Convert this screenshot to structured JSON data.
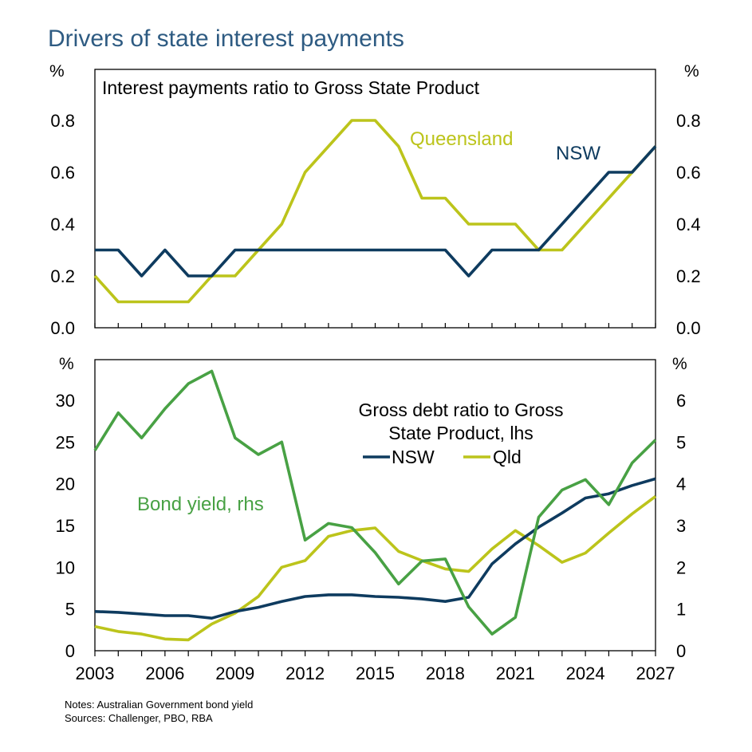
{
  "title": "Drivers of state interest payments",
  "notes": "Notes: Australian Government bond yield",
  "sources": "Sources: Challenger, PBO, RBA",
  "colors": {
    "nsw": "#0e3b5f",
    "qld": "#bcc41b",
    "bond": "#48a144"
  },
  "chart_data": [
    {
      "type": "line",
      "title": "Interest payments ratio to Gross State Product",
      "ylabel_left": "%",
      "ylabel_right": "%",
      "ylim": [
        0,
        0.8
      ],
      "yticks": [
        "0.0",
        "0.2",
        "0.4",
        "0.6",
        "0.8"
      ],
      "xlim": [
        2003,
        2027
      ],
      "series": [
        {
          "name": "NSW",
          "x": [
            2003,
            2004,
            2005,
            2006,
            2007,
            2008,
            2009,
            2010,
            2011,
            2012,
            2013,
            2014,
            2015,
            2016,
            2017,
            2018,
            2019,
            2020,
            2021,
            2022,
            2023,
            2024,
            2025,
            2026,
            2027
          ],
          "values": [
            0.3,
            0.3,
            0.2,
            0.3,
            0.2,
            0.2,
            0.3,
            0.3,
            0.3,
            0.3,
            0.3,
            0.3,
            0.3,
            0.3,
            0.3,
            0.3,
            0.2,
            0.3,
            0.3,
            0.3,
            0.4,
            0.5,
            0.6,
            0.6,
            0.7
          ]
        },
        {
          "name": "Queensland",
          "x": [
            2003,
            2004,
            2005,
            2006,
            2007,
            2008,
            2009,
            2010,
            2011,
            2012,
            2013,
            2014,
            2015,
            2016,
            2017,
            2018,
            2019,
            2020,
            2021,
            2022,
            2023,
            2024,
            2025,
            2026,
            2027
          ],
          "values": [
            0.2,
            0.1,
            0.1,
            0.1,
            0.1,
            0.2,
            0.2,
            0.3,
            0.4,
            0.6,
            0.7,
            0.8,
            0.8,
            0.7,
            0.5,
            0.5,
            0.4,
            0.4,
            0.4,
            0.3,
            0.3,
            0.4,
            0.5,
            0.6,
            0.7
          ]
        }
      ]
    },
    {
      "type": "line",
      "title": "Gross debt ratio to Gross State Product, lhs",
      "title_lines": [
        "Gross debt ratio to Gross",
        "State Product, lhs"
      ],
      "ylabel_left": "%",
      "ylabel_right": "%",
      "ylim_left": [
        0,
        30
      ],
      "ylim_right": [
        0,
        6
      ],
      "yticks_left": [
        "0",
        "5",
        "10",
        "15",
        "20",
        "25",
        "30"
      ],
      "yticks_right": [
        "0",
        "1",
        "2",
        "3",
        "4",
        "5",
        "6"
      ],
      "xlim": [
        2003,
        2027
      ],
      "xticks": [
        "2003",
        "2006",
        "2009",
        "2012",
        "2015",
        "2018",
        "2021",
        "2024",
        "2027"
      ],
      "legend": [
        "NSW",
        "Qld"
      ],
      "series": [
        {
          "name": "NSW",
          "axis": "left",
          "x": [
            2003,
            2004,
            2005,
            2006,
            2007,
            2008,
            2009,
            2010,
            2011,
            2012,
            2013,
            2014,
            2015,
            2016,
            2017,
            2018,
            2019,
            2020,
            2021,
            2022,
            2023,
            2024,
            2025,
            2026,
            2027
          ],
          "values": [
            4.7,
            4.6,
            4.4,
            4.2,
            4.2,
            3.9,
            4.7,
            5.2,
            5.9,
            6.5,
            6.7,
            6.7,
            6.5,
            6.4,
            6.2,
            5.9,
            6.4,
            10.4,
            12.8,
            14.8,
            16.5,
            18.3,
            18.8,
            19.8,
            20.6
          ]
        },
        {
          "name": "Qld",
          "axis": "left",
          "x": [
            2003,
            2004,
            2005,
            2006,
            2007,
            2008,
            2009,
            2010,
            2011,
            2012,
            2013,
            2014,
            2015,
            2016,
            2017,
            2018,
            2019,
            2020,
            2021,
            2022,
            2023,
            2024,
            2025,
            2026,
            2027
          ],
          "values": [
            2.9,
            2.3,
            2.0,
            1.4,
            1.3,
            3.2,
            4.5,
            6.5,
            10.0,
            10.8,
            13.7,
            14.4,
            14.7,
            11.9,
            10.8,
            9.8,
            9.5,
            12.2,
            14.4,
            12.6,
            10.6,
            11.7,
            14.1,
            16.4,
            18.5
          ]
        },
        {
          "name": "Bond yield, rhs",
          "axis": "right",
          "x": [
            2003,
            2004,
            2005,
            2006,
            2007,
            2008,
            2009,
            2010,
            2011,
            2012,
            2013,
            2014,
            2015,
            2016,
            2017,
            2018,
            2019,
            2020,
            2021,
            2022,
            2023,
            2024,
            2025,
            2026,
            2027
          ],
          "values": [
            4.8,
            5.7,
            5.1,
            5.8,
            6.4,
            6.7,
            5.1,
            4.7,
            5.0,
            2.65,
            3.05,
            2.95,
            2.35,
            1.6,
            2.15,
            2.2,
            1.05,
            0.4,
            0.8,
            3.2,
            3.85,
            4.1,
            3.5,
            4.5,
            5.05
          ]
        }
      ]
    }
  ]
}
